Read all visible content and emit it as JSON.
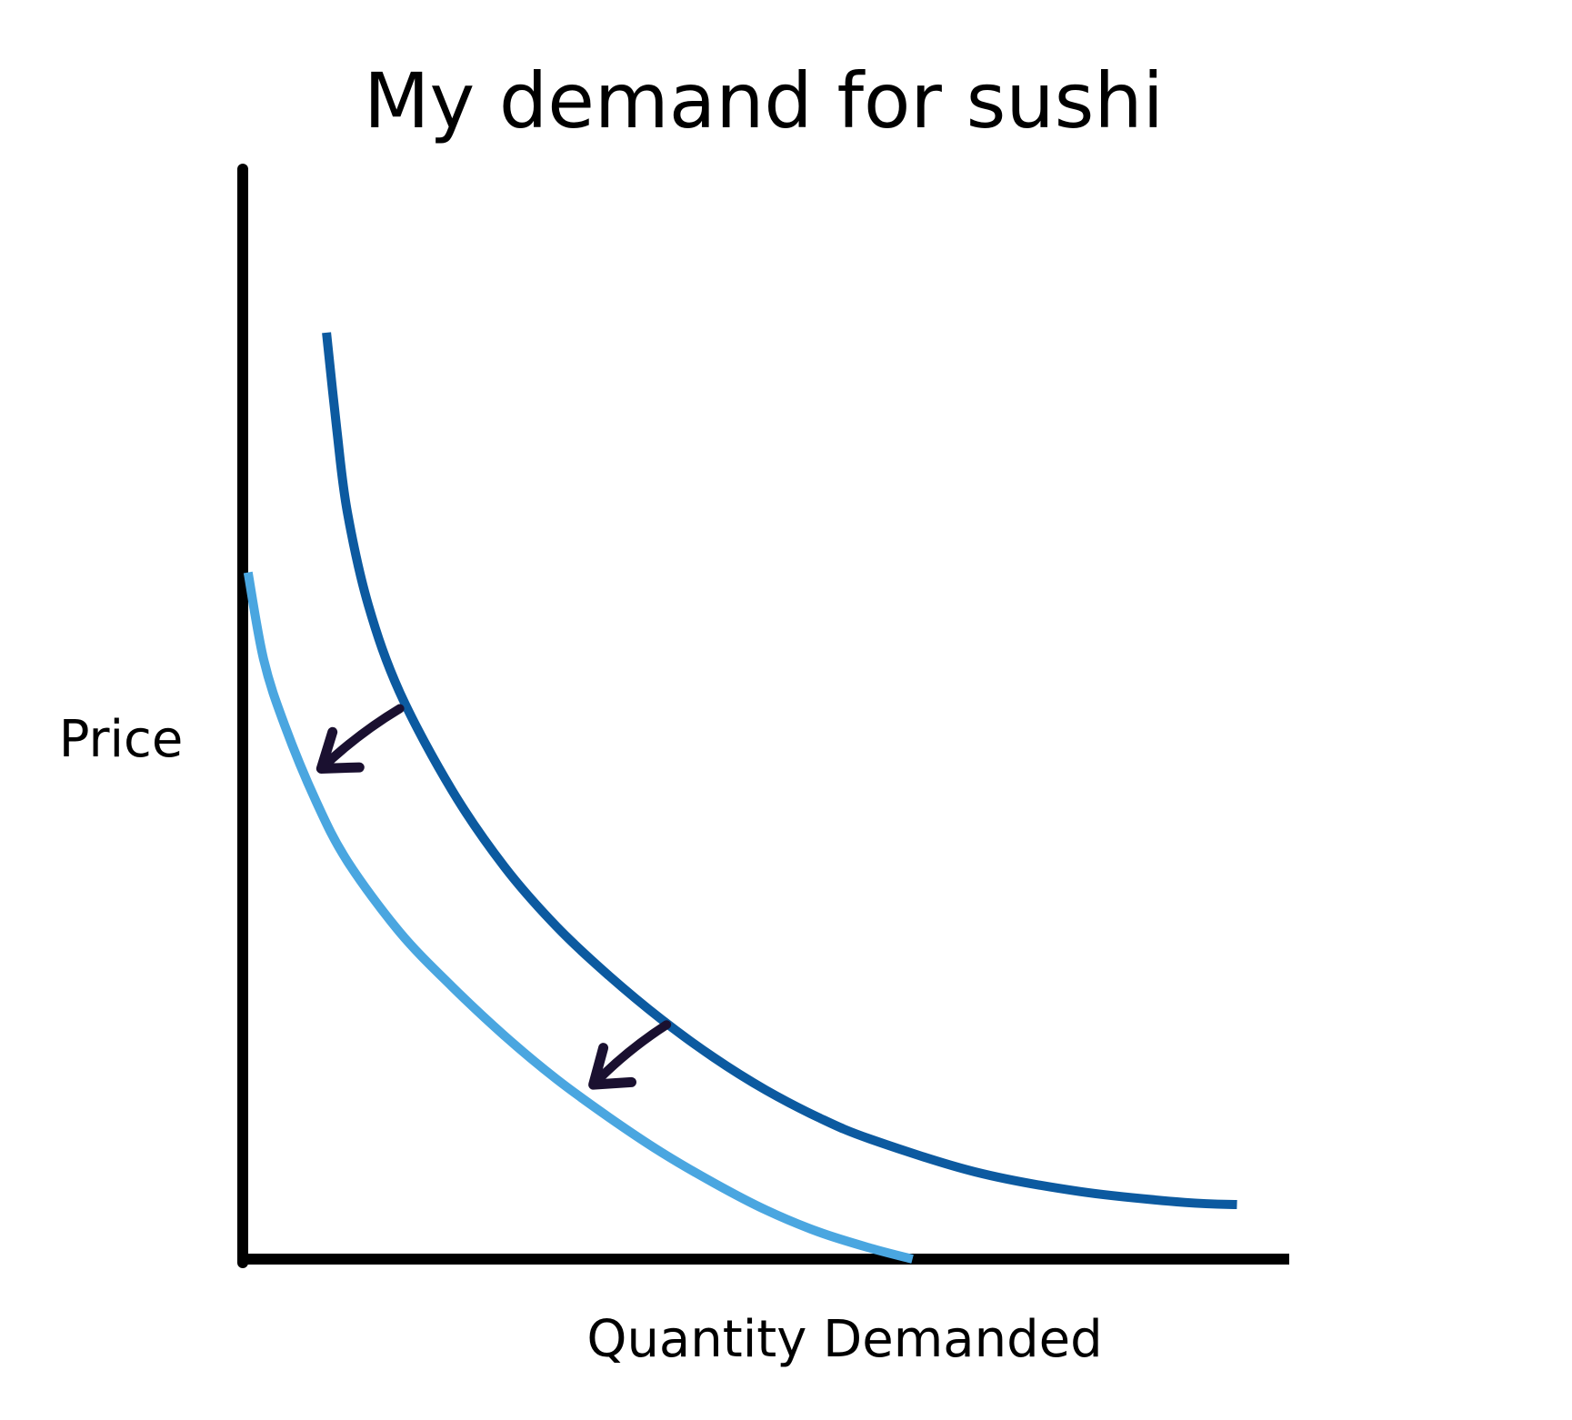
{
  "chart_data": {
    "type": "line",
    "title": "My demand for sushi",
    "xlabel": "Quantity Demanded",
    "ylabel": "Price",
    "xlim": [
      0,
      10
    ],
    "ylim": [
      0,
      10
    ],
    "grid": false,
    "legend": "none",
    "series": [
      {
        "color": "#0c5aa0",
        "x": [
          0.8,
          0.9,
          1.0,
          1.2,
          1.5,
          2.0,
          2.5,
          3.0,
          3.5,
          4.0,
          4.5,
          5.0,
          5.5,
          6.0,
          7.0,
          8.0,
          9.0,
          9.5
        ],
        "values": [
          8.5,
          7.6,
          6.85,
          6.0,
          5.2,
          4.3,
          3.6,
          3.05,
          2.6,
          2.2,
          1.85,
          1.55,
          1.3,
          1.1,
          0.8,
          0.62,
          0.52,
          0.5
        ]
      },
      {
        "color": "#4aa6e0",
        "x": [
          0.05,
          0.2,
          0.4,
          0.7,
          1.0,
          1.5,
          2.0,
          2.5,
          3.0,
          3.5,
          4.0,
          4.5,
          5.0,
          5.5,
          6.0,
          6.4
        ],
        "values": [
          6.3,
          5.5,
          4.9,
          4.2,
          3.65,
          3.0,
          2.5,
          2.05,
          1.65,
          1.3,
          0.98,
          0.7,
          0.45,
          0.25,
          0.1,
          0.0
        ]
      }
    ],
    "annotations": [
      {
        "type": "arrow",
        "from": [
          1.5,
          5.05
        ],
        "to": [
          0.75,
          4.5
        ]
      },
      {
        "type": "arrow",
        "from": [
          4.05,
          2.15
        ],
        "to": [
          3.35,
          1.6
        ]
      }
    ]
  }
}
